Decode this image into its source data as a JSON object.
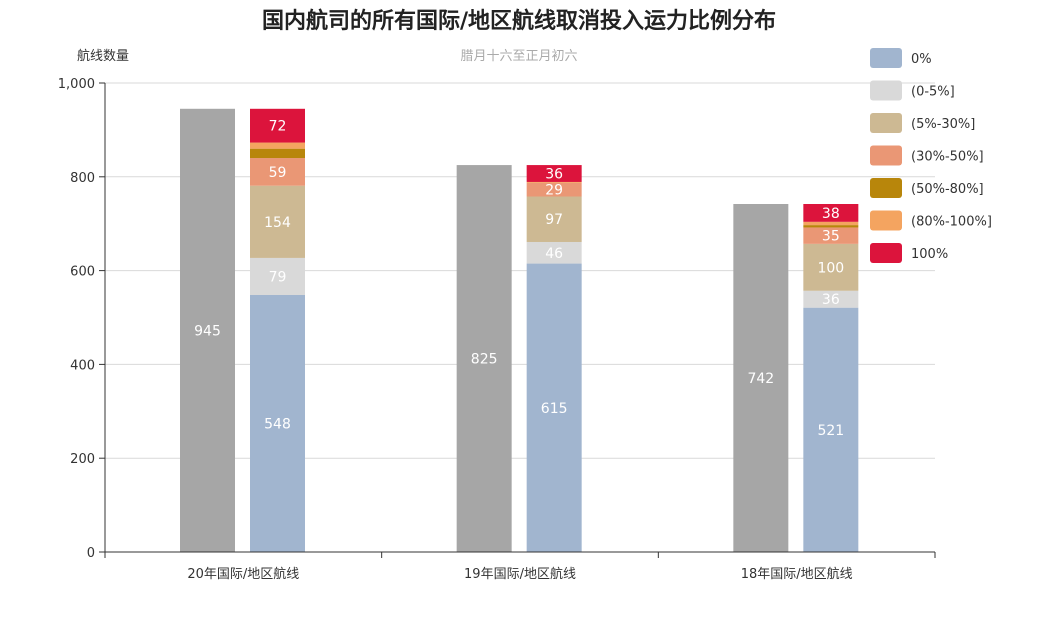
{
  "chart_data": {
    "type": "bar",
    "title": "国内航司的所有国际/地区航线取消投入运力比例分布",
    "subtitle": "腊月十六至正月初六",
    "ylabel": "航线数量",
    "ylim": [
      0,
      1000
    ],
    "yticks": [
      "0",
      "200",
      "400",
      "600",
      "800",
      "1,000"
    ],
    "ytick_values": [
      0,
      200,
      400,
      600,
      800,
      1000
    ],
    "categories": [
      "20年国际/地区航线",
      "19年国际/地区航线",
      "18年国际/地区航线"
    ],
    "totals": [
      945,
      825,
      742
    ],
    "total_color": "#a6a6a6",
    "series": [
      {
        "name": "0%",
        "color": "#a1b5cf",
        "values": [
          548,
          615,
          521
        ],
        "labels": [
          "548",
          "615",
          "521"
        ]
      },
      {
        "name": "(0-5%]",
        "color": "#d9d9d9",
        "values": [
          79,
          46,
          36
        ],
        "labels": [
          "79",
          "46",
          "36"
        ]
      },
      {
        "name": "(5%-30%]",
        "color": "#cdb993",
        "values": [
          154,
          97,
          100
        ],
        "labels": [
          "154",
          "97",
          "100"
        ]
      },
      {
        "name": "(30%-50%]",
        "color": "#ea9775",
        "values": [
          59,
          29,
          35
        ],
        "labels": [
          "59",
          "29",
          "35"
        ]
      },
      {
        "name": "(50%-80%]",
        "color": "#b8860b",
        "values": [
          20,
          0,
          5
        ],
        "labels": [
          "",
          "",
          ""
        ]
      },
      {
        "name": "(80%-100%]",
        "color": "#f4a460",
        "values": [
          13,
          2,
          7
        ],
        "labels": [
          "",
          "",
          ""
        ]
      },
      {
        "name": "100%",
        "color": "#dc143c",
        "values": [
          72,
          36,
          38
        ],
        "labels": [
          "72",
          "36",
          "38"
        ]
      }
    ],
    "legend_position": "top-right",
    "grid": true
  }
}
